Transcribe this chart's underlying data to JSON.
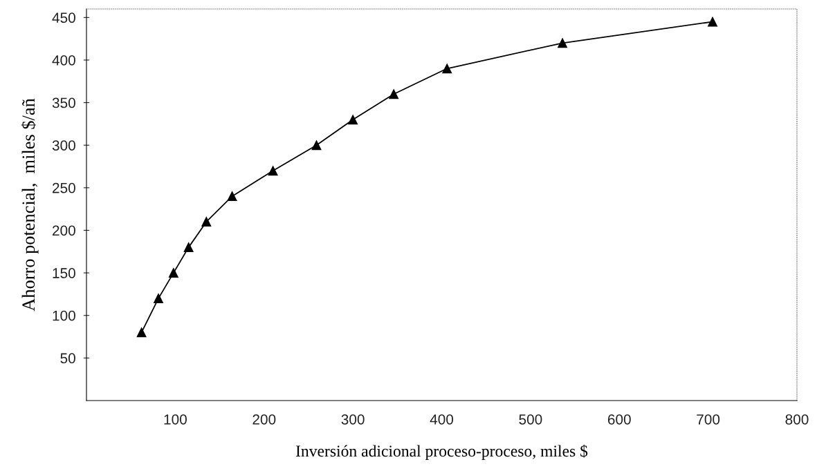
{
  "chart_data": {
    "type": "line",
    "xlabel": "Inversión adicional proceso-proceso, miles $",
    "ylabel": "Ahorro potencial,  miles $/añ",
    "x": [
      62,
      81,
      98,
      115,
      135,
      164,
      210,
      259,
      300,
      346,
      406,
      536,
      705
    ],
    "series": [
      {
        "color": "#000000",
        "values": [
          80,
          120,
          150,
          180,
          210,
          240,
          270,
          300,
          330,
          360,
          390,
          420,
          445
        ]
      }
    ],
    "marker": "triangle",
    "line_style": "solid",
    "xlim": [
      0,
      800
    ],
    "xticks": [
      100,
      200,
      300,
      400,
      500,
      600,
      700,
      800
    ],
    "ylim": [
      0,
      460
    ],
    "yticks": [
      50,
      100,
      150,
      200,
      250,
      300,
      350,
      400,
      450
    ],
    "grid": false,
    "legend": false
  }
}
